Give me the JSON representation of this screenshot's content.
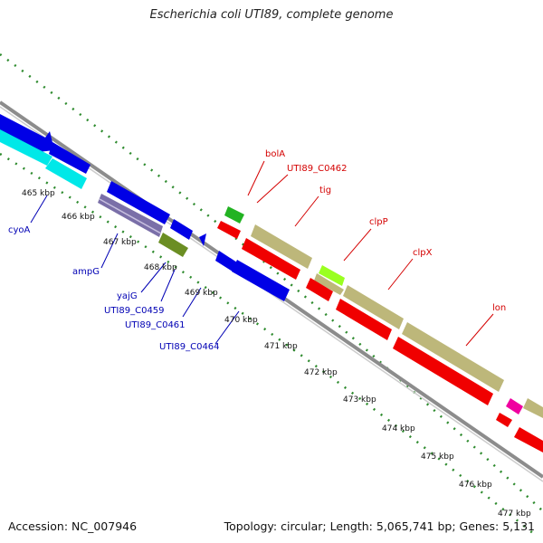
{
  "title": "Escherichia coli UTI89, complete genome",
  "footer": {
    "accession": "Accession: NC_007946",
    "topology": "Topology: circular; Length: 5,065,741 bp; Genes: 5,131"
  },
  "colors": {
    "background": "#ffffff",
    "backbone": "#8c8c8c",
    "tick": "#2e8b2e",
    "forward_label": "#d40000",
    "reverse_label": "#0000b4",
    "blue": "#0000e6",
    "cyan": "#00e8e8",
    "red": "#f00000",
    "khaki": "#bdb77a",
    "green": "#22b322",
    "olive": "#6b8e23",
    "lime": "#9aff20",
    "magenta": "#f000a0",
    "slate": "#7a6fa8"
  },
  "ticks": [
    "465 kbp",
    "466 kbp",
    "467 kbp",
    "468 kbp",
    "469 kbp",
    "470 kbp",
    "471 kbp",
    "472 kbp",
    "473 kbp",
    "474 kbp",
    "475 kbp",
    "476 kbp",
    "477 kbp"
  ],
  "forward_labels": [
    "bolA",
    "UTI89_C0462",
    "tig",
    "clpP",
    "clpX",
    "lon"
  ],
  "reverse_labels": [
    "cyoA",
    "ampG",
    "yajG",
    "UTI89_C0459",
    "UTI89_C0461",
    "UTI89_C0464"
  ]
}
